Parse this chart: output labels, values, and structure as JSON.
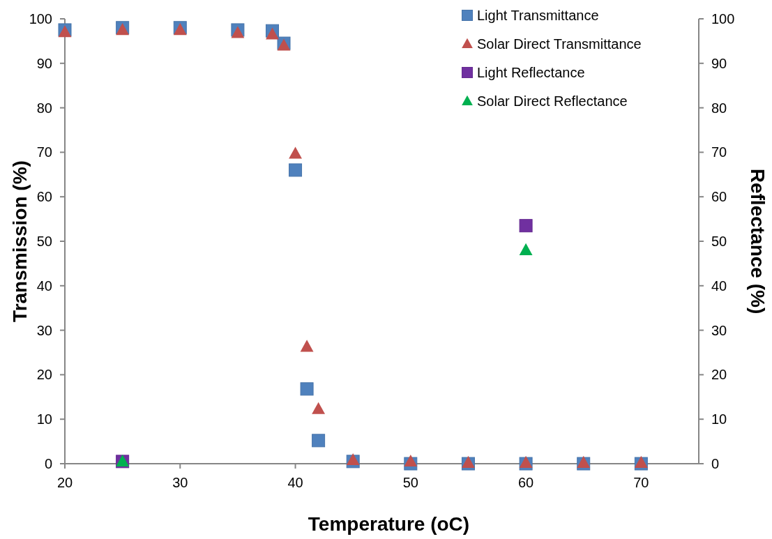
{
  "chart_data": {
    "type": "scatter",
    "xlabel": "Temperature (oC)",
    "ylabel": "Transmission (%)",
    "y2label": "Reflectance (%)",
    "xlim": [
      20,
      75
    ],
    "xticks": [
      20,
      30,
      40,
      50,
      60,
      70
    ],
    "ylim": [
      0,
      100
    ],
    "yticks": [
      0,
      10,
      20,
      30,
      40,
      50,
      60,
      70,
      80,
      90,
      100
    ],
    "y2lim": [
      0,
      100
    ],
    "y2ticks": [
      0,
      10,
      20,
      30,
      40,
      50,
      60,
      70,
      80,
      90,
      100
    ],
    "grid": false,
    "legend": "top right",
    "series": [
      {
        "name": "Light Transmittance",
        "color": "#4f81bd",
        "marker": "square",
        "x": [
          20,
          25,
          30,
          35,
          38,
          39,
          40,
          41,
          42,
          45,
          50,
          55,
          60,
          65,
          70
        ],
        "values": [
          97.5,
          98,
          98,
          97.5,
          97.3,
          94.5,
          66,
          16.8,
          5.2,
          0.5,
          0,
          0,
          0,
          0,
          0
        ]
      },
      {
        "name": "Solar Direct Transmittance",
        "color": "#c0504d",
        "marker": "triangle",
        "x": [
          20,
          25,
          30,
          35,
          38,
          39,
          40,
          41,
          42,
          45,
          50,
          55,
          60,
          65,
          70
        ],
        "values": [
          97,
          97.5,
          97.5,
          96.8,
          96.5,
          94,
          69.7,
          26.3,
          12.3,
          0.8,
          0.5,
          0.2,
          0.2,
          0.2,
          0.2
        ]
      },
      {
        "name": "Light Reflectance",
        "color": "#7030a0",
        "marker": "square",
        "x": [
          25,
          60
        ],
        "values": [
          0.5,
          53.5
        ]
      },
      {
        "name": "Solar Direct Reflectance",
        "color": "#00b050",
        "marker": "triangle",
        "x": [
          25,
          60
        ],
        "values": [
          0.5,
          48
        ]
      }
    ]
  }
}
